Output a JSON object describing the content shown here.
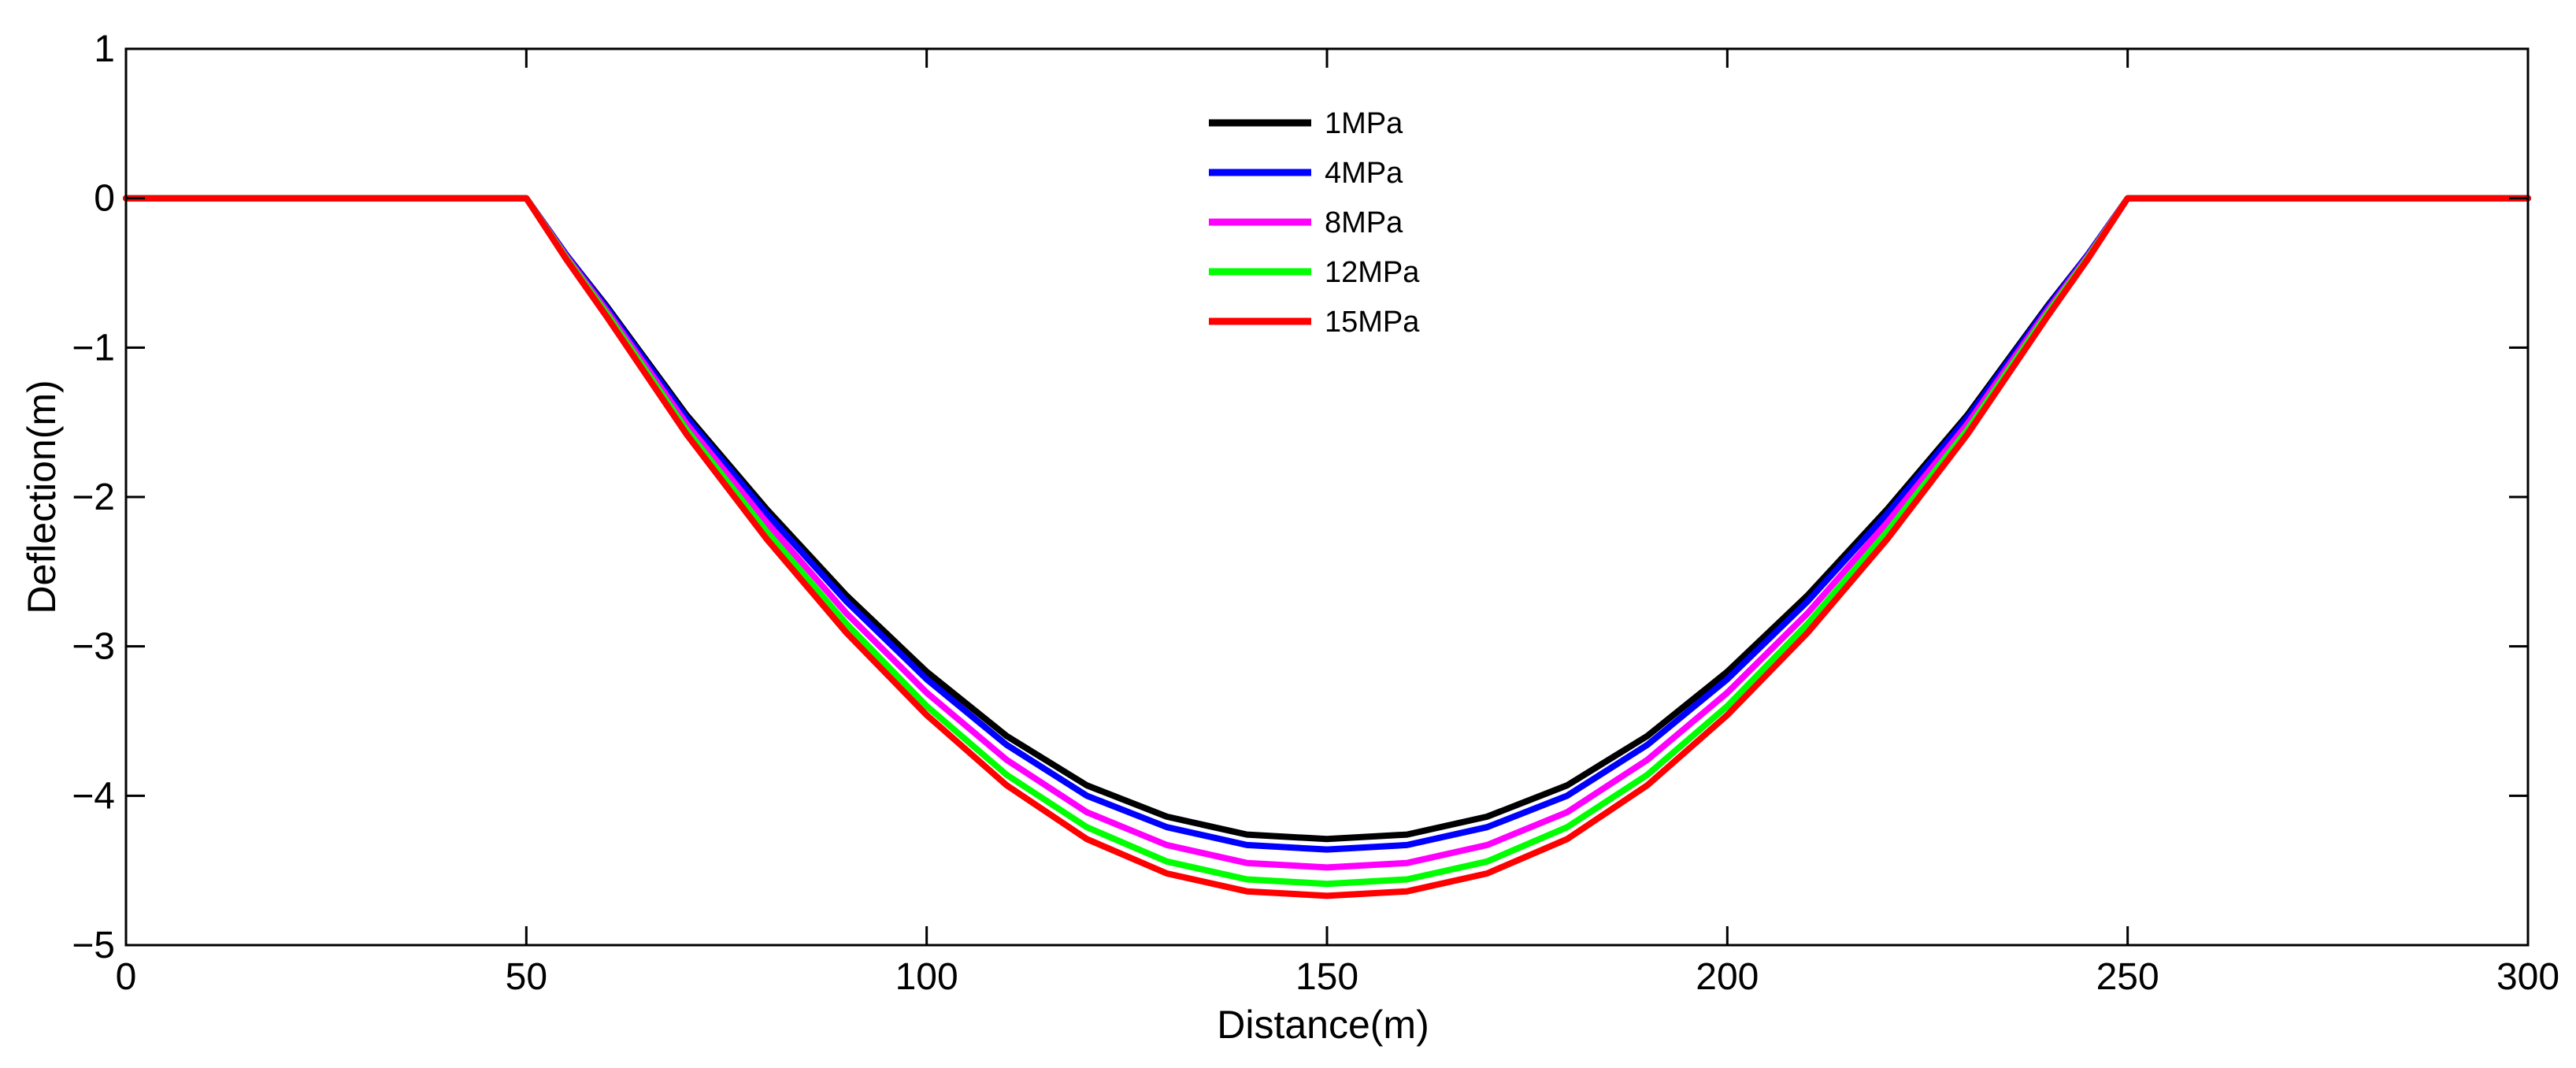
{
  "chart_data": {
    "type": "line",
    "title": "",
    "xlabel": "Distance(m)",
    "ylabel": "Deflection(m)",
    "xlim": [
      0,
      300
    ],
    "ylim": [
      -5,
      1
    ],
    "xticks": [
      0,
      50,
      100,
      150,
      200,
      250,
      300
    ],
    "yticks": [
      1,
      0,
      -1,
      -2,
      -3,
      -4,
      -5
    ],
    "x_tick_labels": [
      "0",
      "50",
      "100",
      "150",
      "200",
      "250",
      "300"
    ],
    "y_tick_labels": [
      "1",
      "0",
      "−1",
      "−2",
      "−3",
      "−4",
      "−5"
    ],
    "grid": false,
    "legend_position": "top-center",
    "x": [
      0,
      10,
      20,
      30,
      40,
      45,
      50,
      55,
      60,
      70,
      80,
      90,
      100,
      110,
      120,
      130,
      140,
      150,
      160,
      170,
      180,
      190,
      200,
      210,
      220,
      230,
      240,
      245,
      250,
      255,
      260,
      270,
      280,
      290,
      300
    ],
    "series": [
      {
        "name": "1MPa",
        "color": "#000000",
        "values": [
          0,
          0,
          0,
          0,
          0,
          0,
          0,
          -0.38,
          -0.72,
          -1.45,
          -2.08,
          -2.66,
          -3.17,
          -3.6,
          -3.93,
          -4.14,
          -4.26,
          -4.29,
          -4.26,
          -4.14,
          -3.93,
          -3.6,
          -3.17,
          -2.66,
          -2.08,
          -1.45,
          -0.72,
          -0.38,
          0,
          0,
          0,
          0,
          0,
          0,
          0
        ]
      },
      {
        "name": "4MPa",
        "color": "#0000ff",
        "values": [
          0,
          0,
          0,
          0,
          0,
          0,
          0,
          -0.38,
          -0.73,
          -1.47,
          -2.11,
          -2.7,
          -3.22,
          -3.66,
          -4.0,
          -4.21,
          -4.33,
          -4.36,
          -4.33,
          -4.21,
          -4.0,
          -3.66,
          -3.22,
          -2.7,
          -2.11,
          -1.47,
          -0.73,
          -0.38,
          0,
          0,
          0,
          0,
          0,
          0,
          0
        ]
      },
      {
        "name": "8MPa",
        "color": "#ff00ff",
        "values": [
          0,
          0,
          0,
          0,
          0,
          0,
          0,
          -0.39,
          -0.75,
          -1.51,
          -2.17,
          -2.78,
          -3.31,
          -3.76,
          -4.11,
          -4.33,
          -4.45,
          -4.48,
          -4.45,
          -4.33,
          -4.11,
          -3.76,
          -3.31,
          -2.78,
          -2.17,
          -1.51,
          -0.75,
          -0.39,
          0,
          0,
          0,
          0,
          0,
          0,
          0
        ]
      },
      {
        "name": "12MPa",
        "color": "#00ff00",
        "values": [
          0,
          0,
          0,
          0,
          0,
          0,
          0,
          -0.4,
          -0.77,
          -1.55,
          -2.23,
          -2.85,
          -3.4,
          -3.86,
          -4.21,
          -4.44,
          -4.56,
          -4.59,
          -4.56,
          -4.44,
          -4.21,
          -3.86,
          -3.4,
          -2.85,
          -2.23,
          -1.55,
          -0.77,
          -0.4,
          0,
          0,
          0,
          0,
          0,
          0,
          0
        ]
      },
      {
        "name": "15MPa",
        "color": "#ff0000",
        "values": [
          0,
          0,
          0,
          0,
          0,
          0,
          0,
          -0.41,
          -0.79,
          -1.58,
          -2.28,
          -2.91,
          -3.46,
          -3.93,
          -4.29,
          -4.52,
          -4.64,
          -4.67,
          -4.64,
          -4.52,
          -4.29,
          -3.93,
          -3.46,
          -2.91,
          -2.28,
          -1.58,
          -0.79,
          -0.41,
          0,
          0,
          0,
          0,
          0,
          0,
          0
        ]
      }
    ]
  }
}
